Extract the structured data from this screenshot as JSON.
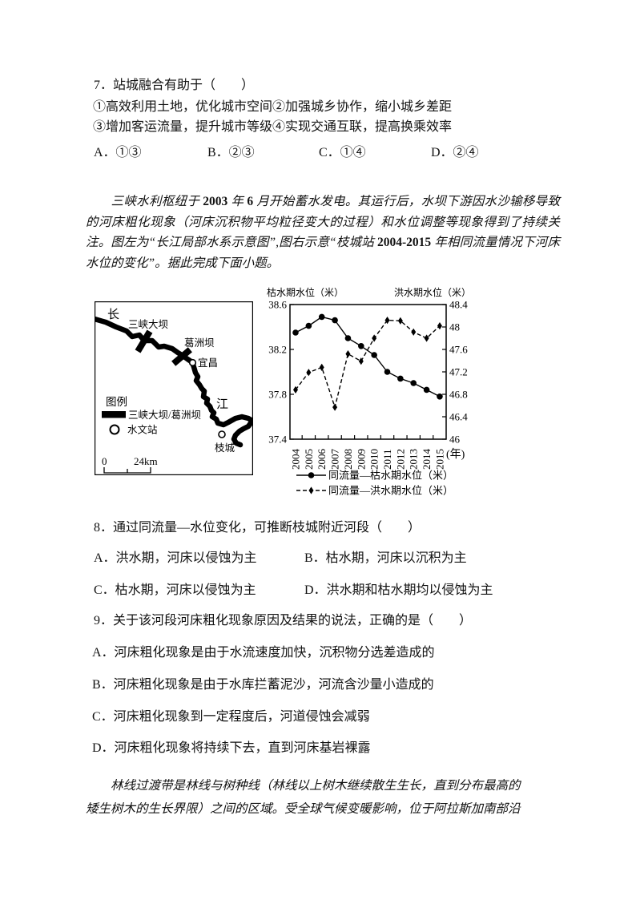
{
  "page": {
    "background": "#ffffff",
    "text_color": "#111111"
  },
  "q7": {
    "stem": "7．站城融合有助于（　　）",
    "sub1": "①高效利用土地，优化城市空间②加强城乡协作，缩小城乡差距",
    "sub2": "③增加客运流量，提升城市等级④实现交通互联，提高换乘效率",
    "options": [
      "A．①③",
      "B．②③",
      "C．①④",
      "D．②④"
    ]
  },
  "intro1": {
    "segments": [
      {
        "t": "　　三峡水利枢纽于 ",
        "b": false
      },
      {
        "t": "2003",
        "b": true
      },
      {
        "t": " 年 ",
        "b": false
      },
      {
        "t": "6",
        "b": true
      },
      {
        "t": " 月开始蓄水发电。其运行后，水坝下游因水沙输移导致的河床粗化现象（河床沉积物平均粒径变大的过程）和水位调整等现象得到了持续关注。图左为“长江局部水系示意图”,图右示意“枝城站 ",
        "b": false
      },
      {
        "t": "2004-2015",
        "b": true
      },
      {
        "t": " 年相同流量情况下河床水位的变化”。据此完成下面小题。",
        "b": false
      }
    ]
  },
  "map": {
    "label_chang": "长",
    "label_jiang": "江",
    "dam1_label": "三峡大坝",
    "dam2_label": "葛洲坝",
    "city_yichang": "宜昌",
    "city_zhicheng": "枝城",
    "legend_title": "图例",
    "legend_dam": "三峡大坝/葛洲坝",
    "legend_station": "水文站",
    "scale_start": "0",
    "scale_end": "24km"
  },
  "chart_data": {
    "type": "line",
    "x_years": [
      "2004",
      "2005",
      "2006",
      "2007",
      "2008",
      "2009",
      "2010",
      "2011",
      "2012",
      "2013",
      "2014",
      "2015"
    ],
    "x_unit_label": "(年)",
    "left_axis": {
      "title": "枯水期水位（米）",
      "min": 37.4,
      "max": 38.6,
      "ticks": [
        "38.6",
        "38.2",
        "37.8",
        "37.4"
      ]
    },
    "right_axis": {
      "title": "洪水期水位（米）",
      "min": 46,
      "max": 48.4,
      "ticks": [
        "48.4",
        "48",
        "47.6",
        "47.2",
        "46.8",
        "46.4",
        "46"
      ]
    },
    "grid": false,
    "legend_position": "bottom",
    "series": [
      {
        "name": "同流量—枯水期水位（米）",
        "axis": "left",
        "line": "solid",
        "marker": "circle",
        "values": [
          38.35,
          38.41,
          38.49,
          38.46,
          38.3,
          38.23,
          38.15,
          38.0,
          37.94,
          37.9,
          37.84,
          37.78
        ]
      },
      {
        "name": "同流量—洪水期水位（米）",
        "axis": "right",
        "line": "dashed",
        "marker": "diamond",
        "values": [
          46.88,
          47.19,
          47.28,
          46.57,
          47.52,
          47.39,
          47.8,
          48.12,
          48.11,
          47.91,
          47.8,
          48.02
        ]
      }
    ]
  },
  "q8": {
    "stem": "8．通过同流量—水位变化，可推断枝城附近河段（　　）",
    "options": [
      "A．洪水期，河床以侵蚀为主",
      "B．枯水期，河床以沉积为主",
      "C．枯水期，河床以侵蚀为主",
      "D．洪水期和枯水期均以侵蚀为主"
    ]
  },
  "q9": {
    "stem": "9．关于该河段河床粗化现象原因及结果的说法，正确的是（　　）",
    "options": [
      "A．河床粗化现象是由于水流速度加快，沉积物分选差造成的",
      "B．河床粗化现象是由于水库拦蓄泥沙，河流含沙量小造成的",
      "C．河床粗化现象到一定程度后，河道侵蚀会减弱",
      "D．河床粗化现象将持续下去，直到河床基岩裸露"
    ]
  },
  "intro2": {
    "text": "　　林线过渡带是林线与树种线（林线以上树木继续散生生长，直到分布最高的\n矮生树木的生长界限）之间的区域。受全球气候变暖影响，位于阿拉斯加南部沿"
  }
}
